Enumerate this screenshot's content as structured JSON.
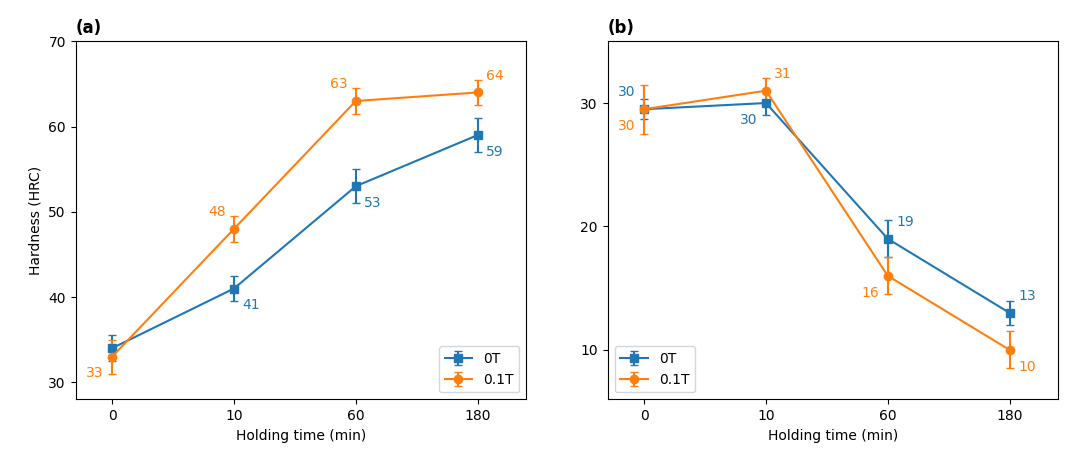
{
  "chart_data": [
    {
      "type": "line",
      "title": "(a)",
      "categories": [
        "0",
        "10",
        "60",
        "180"
      ],
      "x_label": "Holding time (min)",
      "y_label": "Hardness (HRC)",
      "ylim": [
        28,
        70
      ],
      "yticks": [
        30,
        40,
        50,
        60,
        70
      ],
      "legend": "lower right",
      "data_labels": true,
      "series": [
        {
          "name": "0T",
          "marker": "square",
          "values": [
            34,
            41,
            53,
            59
          ],
          "errors": [
            1.5,
            1.5,
            2.0,
            2.0
          ],
          "value_labels": [
            null,
            "41",
            "53",
            "59"
          ]
        },
        {
          "name": "0.1T",
          "marker": "circle",
          "values": [
            33,
            48,
            63,
            64
          ],
          "errors": [
            2.0,
            1.5,
            1.5,
            1.5
          ],
          "value_labels": [
            "33",
            "48",
            "63",
            "64"
          ]
        }
      ]
    },
    {
      "type": "line",
      "title": "(b)",
      "categories": [
        "0",
        "10",
        "60",
        "180"
      ],
      "x_label": "Holding time (min)",
      "ylim": [
        6,
        35
      ],
      "yticks": [
        10,
        20,
        30
      ],
      "legend": "lower left",
      "data_labels": true,
      "series": [
        {
          "name": "0T",
          "marker": "square",
          "values": [
            29.5,
            30,
            19,
            13
          ],
          "errors": [
            0.8,
            1.0,
            1.5,
            1.0
          ],
          "value_labels": [
            "30",
            "30",
            "19",
            "13"
          ]
        },
        {
          "name": "0.1T",
          "marker": "circle",
          "values": [
            29.5,
            31,
            16,
            10
          ],
          "errors": [
            2.0,
            1.0,
            1.5,
            1.5
          ],
          "value_labels": [
            "30",
            "31",
            "16",
            "10"
          ]
        }
      ]
    }
  ]
}
